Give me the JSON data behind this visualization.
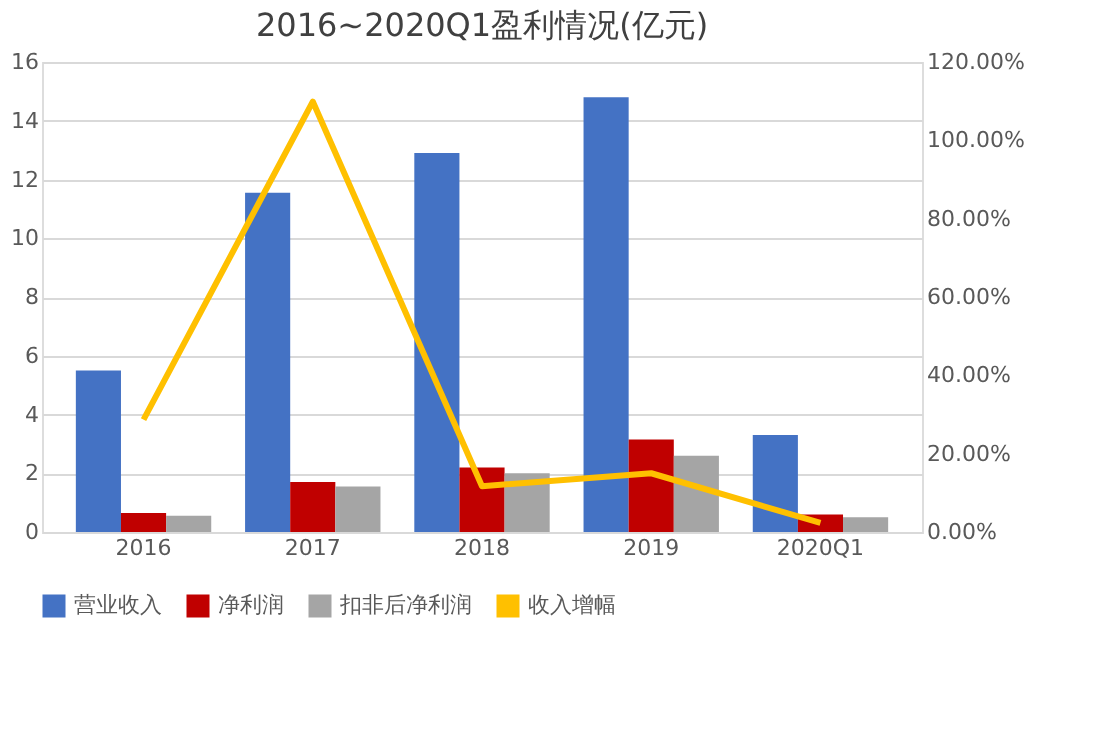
{
  "chart_data": {
    "type": "bar",
    "title": "2016~2020Q1盈利情况(亿元)",
    "categories": [
      "2016",
      "2017",
      "2018",
      "2019",
      "2020Q1"
    ],
    "series": [
      {
        "name": "营业收入",
        "color": "#4472c4",
        "values": [
          5.5,
          11.55,
          12.9,
          14.8,
          3.3
        ]
      },
      {
        "name": "净利润",
        "color": "#c00000",
        "values": [
          0.65,
          1.7,
          2.2,
          3.15,
          0.6
        ]
      },
      {
        "name": "扣非后净利润",
        "color": "#a5a5a5",
        "values": [
          0.55,
          1.55,
          2.0,
          2.6,
          0.5
        ]
      },
      {
        "name": "收入增幅",
        "color": "#ffc000",
        "type": "line",
        "axis": "y2",
        "values": [
          28.7,
          109.9,
          11.7,
          15.0,
          2.3
        ]
      }
    ],
    "ylim": [
      0,
      16
    ],
    "yticks": [
      0,
      2,
      4,
      6,
      8,
      10,
      12,
      14,
      16
    ],
    "y2lim": [
      0,
      120
    ],
    "y2ticks": [
      {
        "value": 0,
        "label": "0.00%"
      },
      {
        "value": 20,
        "label": "20.00%"
      },
      {
        "value": 40,
        "label": "40.00%"
      },
      {
        "value": 60,
        "label": "60.00%"
      },
      {
        "value": 80,
        "label": "80.00%"
      },
      {
        "value": 100,
        "label": "100.00%"
      },
      {
        "value": 120,
        "label": "120.00%"
      }
    ],
    "grid": "y",
    "legend": "bottom",
    "marker": "none",
    "line_style": "solid"
  }
}
